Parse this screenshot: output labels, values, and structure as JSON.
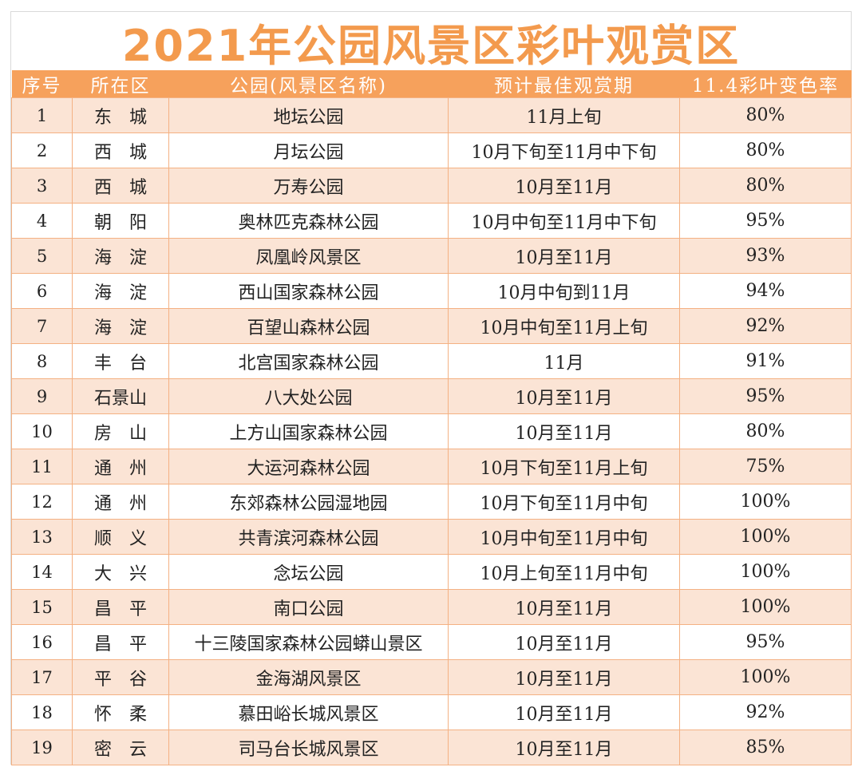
{
  "title": "2021年公园风景区彩叶观赏区",
  "headers": [
    "序号",
    "所在区",
    "公园(风景区名称)",
    "预计最佳观赏期",
    "11.4彩叶变色率"
  ],
  "rows": [
    {
      "no": "1",
      "district": "东　城",
      "park": "地坛公园",
      "period": "11月上旬",
      "rate": "80%"
    },
    {
      "no": "2",
      "district": "西　城",
      "park": "月坛公园",
      "period": "10月下旬至11月中下旬",
      "rate": "80%"
    },
    {
      "no": "3",
      "district": "西　城",
      "park": "万寿公园",
      "period": "10月至11月",
      "rate": "80%"
    },
    {
      "no": "4",
      "district": "朝　阳",
      "park": "奥林匹克森林公园",
      "period": "10月中旬至11月中下旬",
      "rate": "95%"
    },
    {
      "no": "5",
      "district": "海　淀",
      "park": "凤凰岭风景区",
      "period": "10月至11月",
      "rate": "93%"
    },
    {
      "no": "6",
      "district": "海　淀",
      "park": "西山国家森林公园",
      "period": "10月中旬到11月",
      "rate": "94%"
    },
    {
      "no": "7",
      "district": "海　淀",
      "park": "百望山森林公园",
      "period": "10月中旬至11月上旬",
      "rate": "92%"
    },
    {
      "no": "8",
      "district": "丰　台",
      "park": "北宫国家森林公园",
      "period": "11月",
      "rate": "91%"
    },
    {
      "no": "9",
      "district": "石景山",
      "park": "八大处公园",
      "period": "10月至11月",
      "rate": "95%"
    },
    {
      "no": "10",
      "district": "房　山",
      "park": "上方山国家森林公园",
      "period": "10月至11月",
      "rate": "80%"
    },
    {
      "no": "11",
      "district": "通　州",
      "park": "大运河森林公园",
      "period": "10月下旬至11月上旬",
      "rate": "75%"
    },
    {
      "no": "12",
      "district": "通　州",
      "park": "东郊森林公园湿地园",
      "period": "10月下旬至11月中旬",
      "rate": "100%"
    },
    {
      "no": "13",
      "district": "顺　义",
      "park": "共青滨河森林公园",
      "period": "10月中旬至11月中旬",
      "rate": "100%"
    },
    {
      "no": "14",
      "district": "大　兴",
      "park": "念坛公园",
      "period": "10月上旬至11月中旬",
      "rate": "100%"
    },
    {
      "no": "15",
      "district": "昌　平",
      "park": "南口公园",
      "period": "10月至11月",
      "rate": "100%"
    },
    {
      "no": "16",
      "district": "昌　平",
      "park": "十三陵国家森林公园蟒山景区",
      "period": "10月至11月",
      "rate": "95%"
    },
    {
      "no": "17",
      "district": "平　谷",
      "park": "金海湖风景区",
      "period": "10月至11月",
      "rate": "100%"
    },
    {
      "no": "18",
      "district": "怀　柔",
      "park": "慕田峪长城风景区",
      "period": "10月至11月",
      "rate": "92%"
    },
    {
      "no": "19",
      "district": "密　云",
      "park": "司马台长城风景区",
      "period": "10月至11月",
      "rate": "85%"
    }
  ],
  "colors": {
    "title": "#f39a4d",
    "header_bg": "#f6a15c",
    "stripe": "#fbe4d5",
    "border": "#f4b183"
  }
}
